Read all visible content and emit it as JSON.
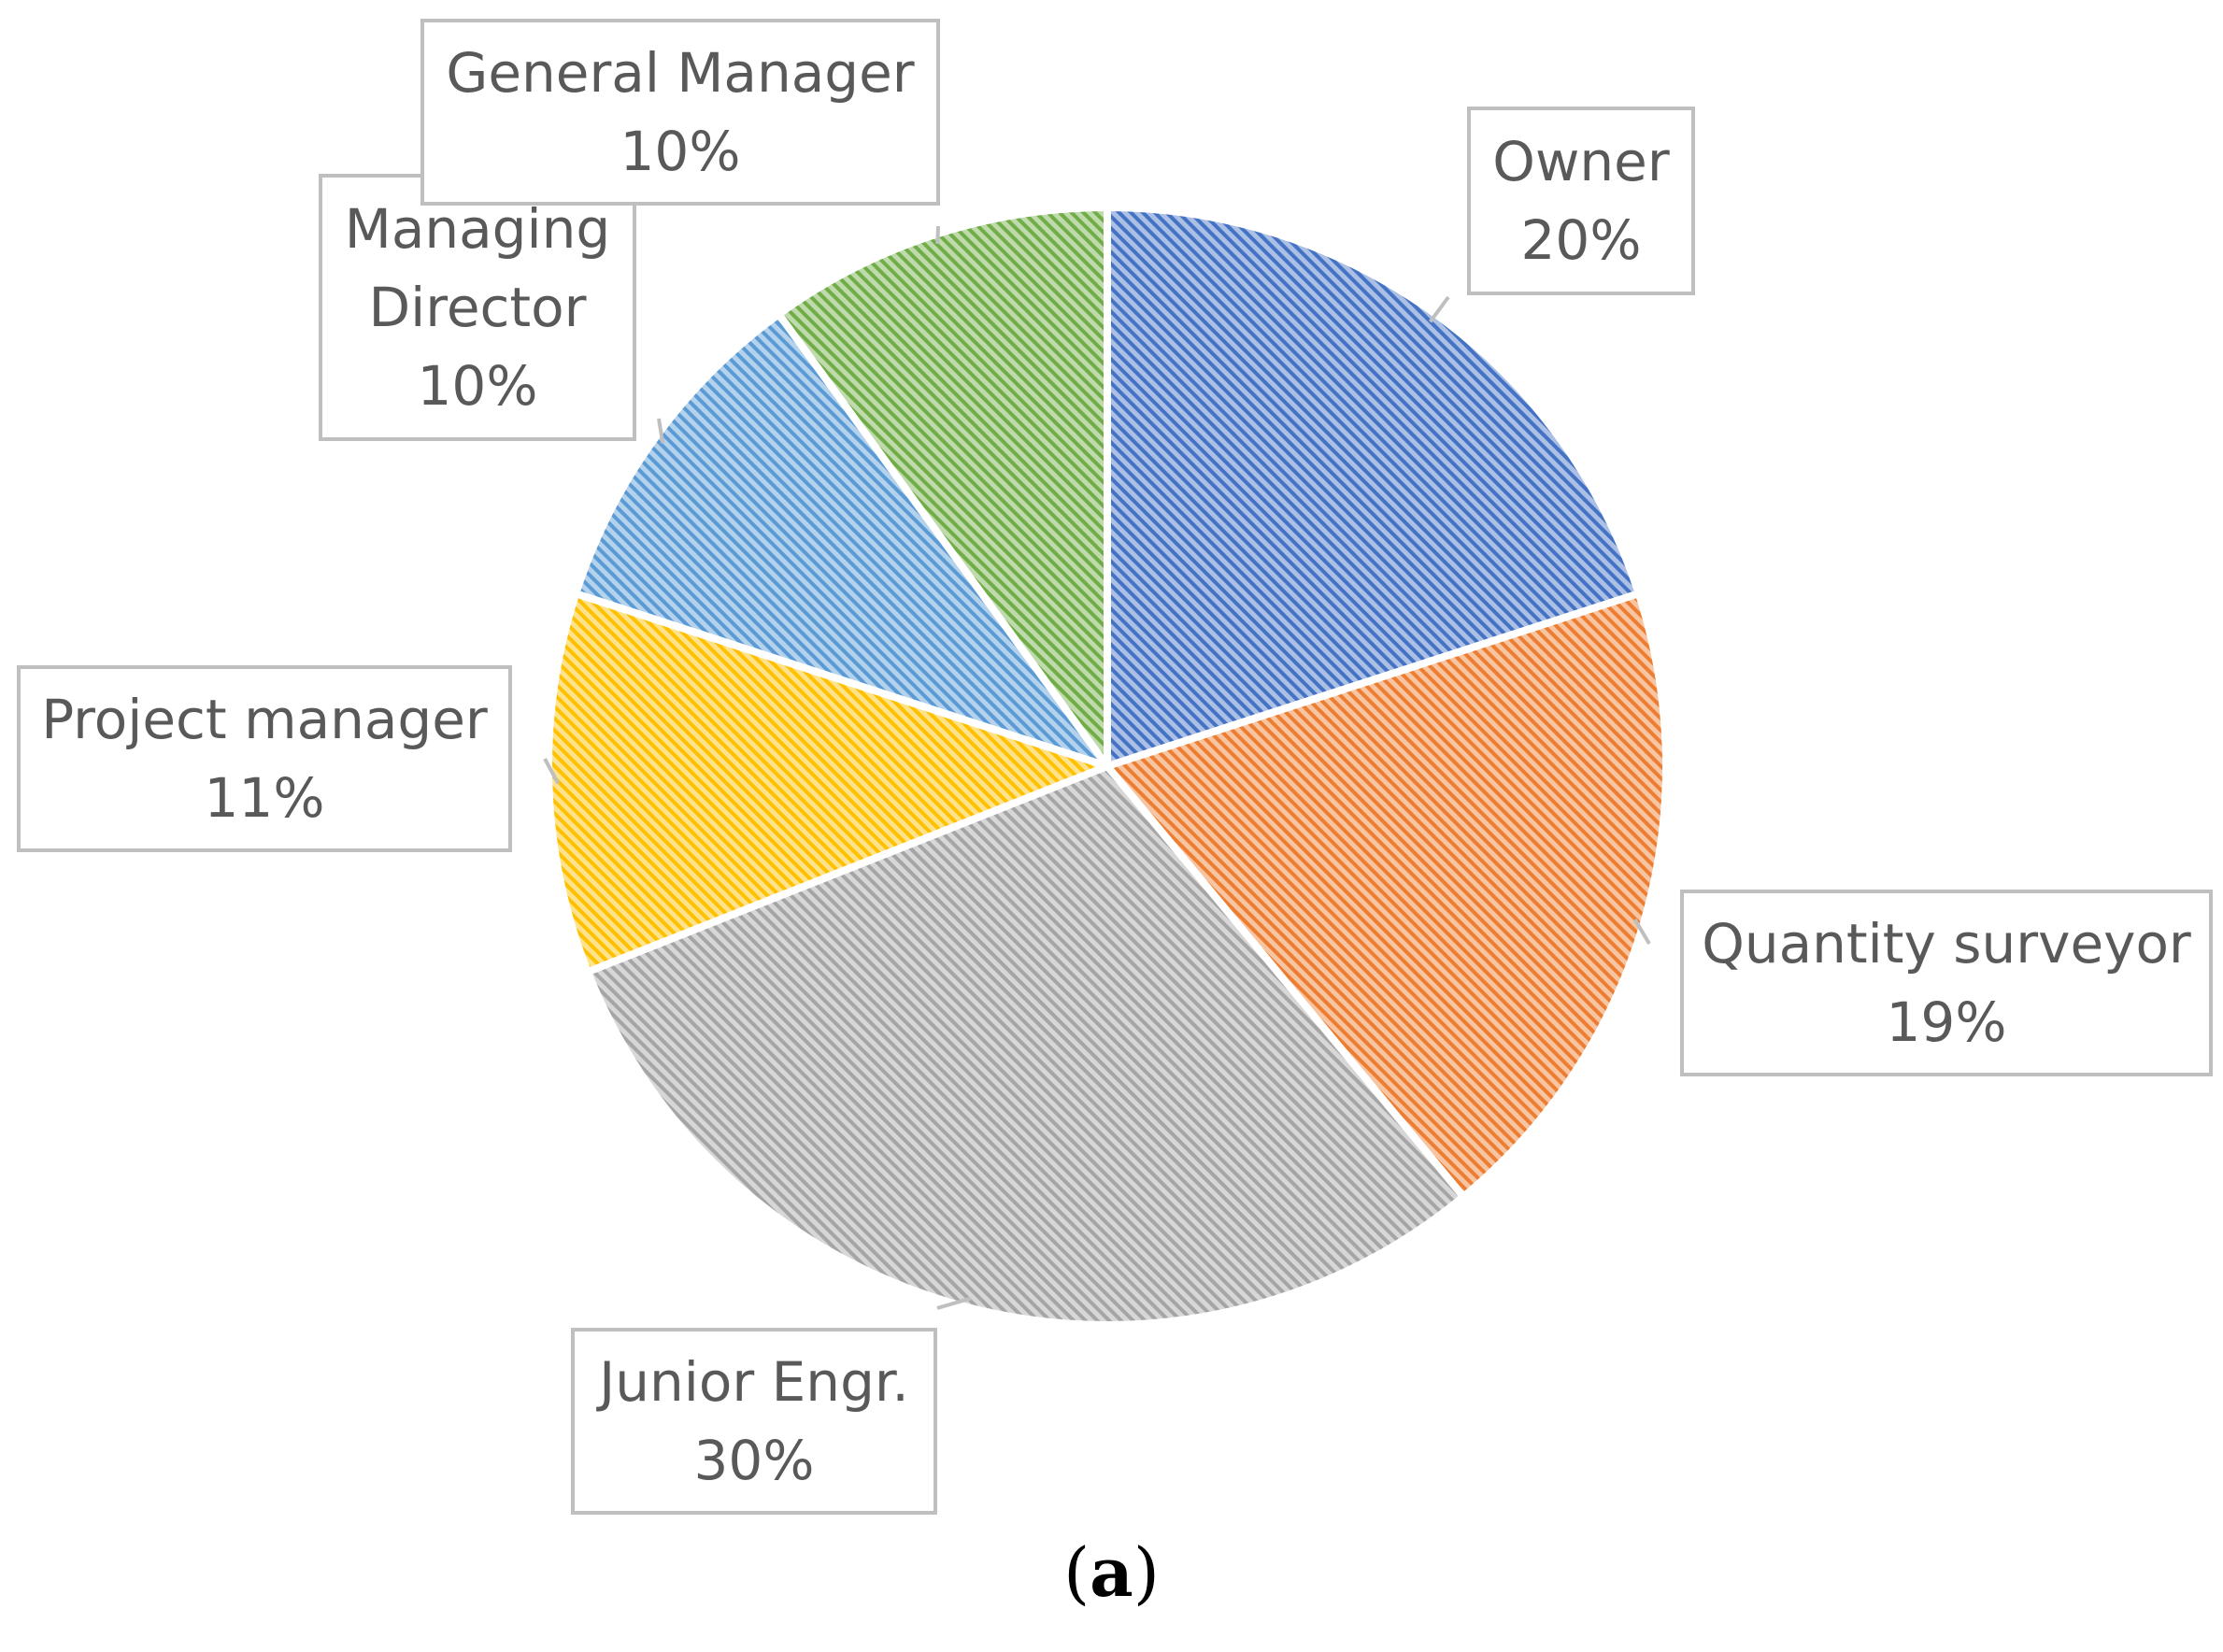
{
  "chart_data": {
    "type": "pie",
    "title": "",
    "start_angle_deg": 0,
    "direction": "clockwise",
    "slices": [
      {
        "name": "Owner",
        "value": 20,
        "label": "20%",
        "color": "#4472C4"
      },
      {
        "name": "Quantity surveyor",
        "value": 19,
        "label": "19%",
        "color": "#ED7D31"
      },
      {
        "name": "Junior Engr.",
        "value": 30,
        "label": "30%",
        "color": "#A5A5A5"
      },
      {
        "name": "Project manager",
        "value": 11,
        "label": "11%",
        "color": "#FFC000"
      },
      {
        "name": "Managing Director",
        "value": 10,
        "label": "10%",
        "color": "#5B9BD5"
      },
      {
        "name": "General Manager",
        "value": 10,
        "label": "10%",
        "color": "#70AD47"
      }
    ]
  },
  "caption": {
    "open": "(",
    "letter": "a",
    "close": ")"
  }
}
